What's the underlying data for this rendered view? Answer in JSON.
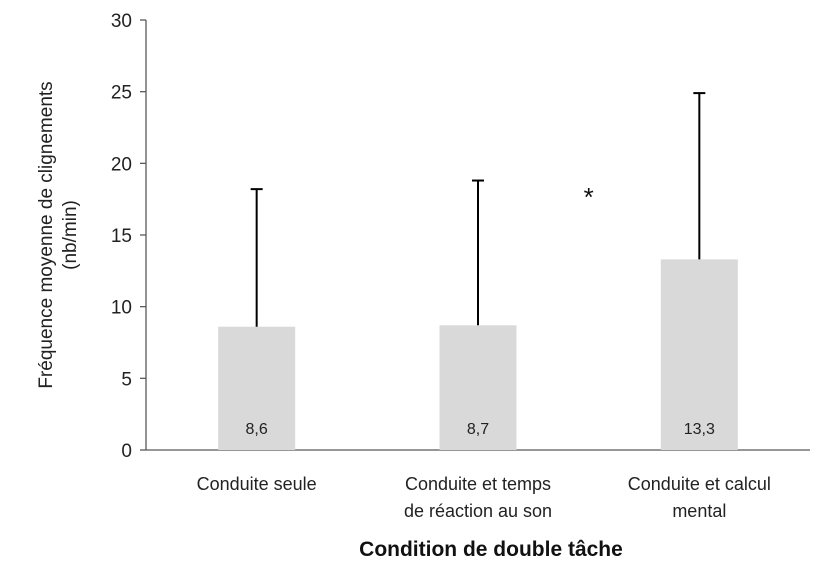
{
  "chart_data": {
    "type": "bar",
    "categories": [
      [
        "Conduite seule"
      ],
      [
        "Conduite et temps",
        "de réaction au son"
      ],
      [
        "Conduite et calcul",
        "mental"
      ]
    ],
    "values": [
      8.6,
      8.7,
      13.3
    ],
    "value_labels": [
      "8,6",
      "8,7",
      "13,3"
    ],
    "error_bar_upper": [
      18.2,
      18.8,
      24.9
    ],
    "ylim": [
      0,
      30
    ],
    "yticks": [
      0,
      5,
      10,
      15,
      20,
      25,
      30
    ],
    "ylabel_lines": [
      "Fréquence moyenne de clignements",
      "(nb/min)"
    ],
    "xlabel": "Condition de double tâche",
    "annotation": "*",
    "bar_color": "#d9d9d9",
    "axis_color": "#595959",
    "error_bar_color": "#000000",
    "grid": false
  }
}
